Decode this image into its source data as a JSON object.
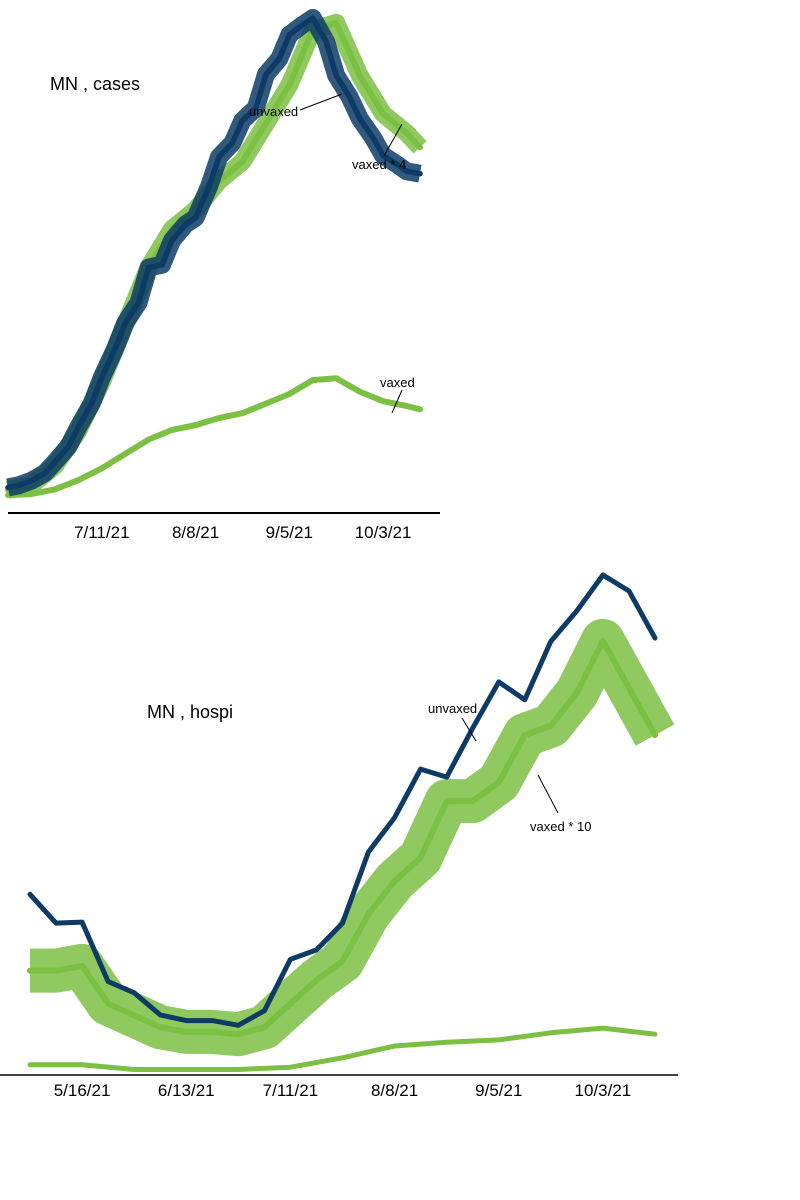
{
  "colors": {
    "unvaxed": "#0d3b66",
    "vaxed": "#7bc043",
    "axis": "#000000"
  },
  "chart_data": [
    {
      "type": "line",
      "title": "MN , cases",
      "x_ticks": [
        "7/11/21",
        "8/8/21",
        "9/5/21",
        "10/3/21"
      ],
      "x_range": [
        "2021-06-13",
        "2021-10-17"
      ],
      "y_unit": "relative",
      "series": [
        {
          "name": "unvaxed",
          "color": "#0d3b66",
          "x": [
            "2021-06-13",
            "2021-06-16",
            "2021-06-20",
            "2021-06-24",
            "2021-06-27",
            "2021-07-01",
            "2021-07-04",
            "2021-07-08",
            "2021-07-11",
            "2021-07-15",
            "2021-07-18",
            "2021-07-22",
            "2021-07-25",
            "2021-07-29",
            "2021-08-01",
            "2021-08-05",
            "2021-08-08",
            "2021-08-12",
            "2021-08-15",
            "2021-08-19",
            "2021-08-22",
            "2021-08-26",
            "2021-08-29",
            "2021-09-02",
            "2021-09-05",
            "2021-09-09",
            "2021-09-12",
            "2021-09-16",
            "2021-09-19",
            "2021-09-23",
            "2021-09-26",
            "2021-09-30",
            "2021-10-03",
            "2021-10-07",
            "2021-10-10",
            "2021-10-14"
          ],
          "y": [
            2.0,
            2.4,
            3.4,
            5.0,
            7.3,
            10.5,
            14.6,
            19.5,
            25.0,
            31.0,
            36.3,
            40.6,
            47.9,
            48.5,
            53.6,
            56.9,
            58.3,
            64.8,
            71.0,
            73.9,
            78.6,
            81.2,
            88.2,
            91.5,
            96.5,
            98.6,
            100.0,
            95.0,
            88.0,
            83.5,
            79.0,
            75.0,
            71.3,
            69.5,
            68.0,
            67.5
          ]
        },
        {
          "name": "vaxed * 4",
          "color": "#7bc043",
          "x": [
            "2021-06-13",
            "2021-06-20",
            "2021-06-27",
            "2021-07-04",
            "2021-07-11",
            "2021-07-18",
            "2021-07-25",
            "2021-08-01",
            "2021-08-08",
            "2021-08-15",
            "2021-08-22",
            "2021-08-29",
            "2021-09-05",
            "2021-09-12",
            "2021-09-19",
            "2021-09-26",
            "2021-10-03",
            "2021-10-10",
            "2021-10-14"
          ],
          "y": [
            1.5,
            2.5,
            6.5,
            13.8,
            24.0,
            36.0,
            48.0,
            56.0,
            60.0,
            66.0,
            70.0,
            78.0,
            86.0,
            97.5,
            99.0,
            88.0,
            80.0,
            76.0,
            73.0
          ]
        },
        {
          "name": "vaxed",
          "color": "#7bc043",
          "x": [
            "2021-06-13",
            "2021-06-20",
            "2021-06-27",
            "2021-07-04",
            "2021-07-11",
            "2021-07-18",
            "2021-07-25",
            "2021-08-01",
            "2021-08-08",
            "2021-08-15",
            "2021-08-22",
            "2021-08-29",
            "2021-09-05",
            "2021-09-12",
            "2021-09-19",
            "2021-09-26",
            "2021-10-03",
            "2021-10-10",
            "2021-10-14"
          ],
          "y": [
            0.4,
            0.6,
            1.6,
            3.5,
            6.0,
            9.0,
            12.0,
            14.0,
            15.0,
            16.5,
            17.5,
            19.5,
            21.5,
            24.4,
            24.8,
            22.0,
            20.0,
            19.0,
            18.3
          ]
        }
      ],
      "annotations": [
        "unvaxed",
        "vaxed * 4",
        "vaxed"
      ]
    },
    {
      "type": "line",
      "title": "MN , hospi",
      "x_ticks": [
        "5/16/21",
        "6/13/21",
        "7/11/21",
        "8/8/21",
        "9/5/21",
        "10/3/21"
      ],
      "x_range": [
        "2021-05-02",
        "2021-10-17"
      ],
      "y_unit": "relative",
      "series": [
        {
          "name": "unvaxed",
          "color": "#0d3b66",
          "x": [
            "2021-05-02",
            "2021-05-09",
            "2021-05-16",
            "2021-05-23",
            "2021-05-30",
            "2021-06-06",
            "2021-06-13",
            "2021-06-20",
            "2021-06-27",
            "2021-07-04",
            "2021-07-11",
            "2021-07-18",
            "2021-07-25",
            "2021-08-01",
            "2021-08-08",
            "2021-08-15",
            "2021-08-22",
            "2021-08-29",
            "2021-09-05",
            "2021-09-12",
            "2021-09-19",
            "2021-09-26",
            "2021-10-03",
            "2021-10-10",
            "2021-10-17"
          ],
          "y": [
            32.2,
            26.1,
            26.3,
            13.7,
            11.3,
            6.6,
            5.4,
            5.4,
            4.4,
            7.5,
            18.4,
            20.4,
            26.1,
            41.2,
            48.5,
            58.8,
            57.1,
            67.5,
            77.3,
            73.5,
            85.9,
            92.4,
            100.0,
            96.6,
            86.6
          ]
        },
        {
          "name": "vaxed * 10",
          "color": "#7bc043",
          "x": [
            "2021-05-02",
            "2021-05-09",
            "2021-05-16",
            "2021-05-23",
            "2021-05-30",
            "2021-06-06",
            "2021-06-13",
            "2021-06-20",
            "2021-06-27",
            "2021-07-04",
            "2021-07-11",
            "2021-07-18",
            "2021-07-25",
            "2021-08-01",
            "2021-08-08",
            "2021-08-15",
            "2021-08-22",
            "2021-08-29",
            "2021-09-05",
            "2021-09-12",
            "2021-09-19",
            "2021-09-26",
            "2021-10-03",
            "2021-10-10",
            "2021-10-17"
          ],
          "y": [
            16.0,
            16.0,
            17.0,
            9.0,
            6.5,
            4.0,
            3.0,
            3.0,
            2.5,
            4.0,
            9.0,
            14.0,
            18.0,
            28.0,
            35.0,
            40.0,
            52.0,
            52.0,
            56.0,
            66.0,
            68.0,
            75.0,
            86.0,
            76.0,
            66.0
          ]
        },
        {
          "name": "vaxed",
          "color": "#7bc043",
          "x": [
            "2021-05-02",
            "2021-05-16",
            "2021-05-30",
            "2021-06-13",
            "2021-06-27",
            "2021-07-11",
            "2021-07-25",
            "2021-08-08",
            "2021-08-22",
            "2021-09-05",
            "2021-09-19",
            "2021-10-03",
            "2021-10-17"
          ],
          "y": [
            -4.0,
            -4.0,
            -5.0,
            -5.0,
            -5.0,
            -4.5,
            -2.5,
            0.0,
            0.8,
            1.3,
            2.8,
            3.8,
            2.5
          ]
        }
      ],
      "annotations": [
        "unvaxed",
        "vaxed * 10"
      ]
    }
  ]
}
